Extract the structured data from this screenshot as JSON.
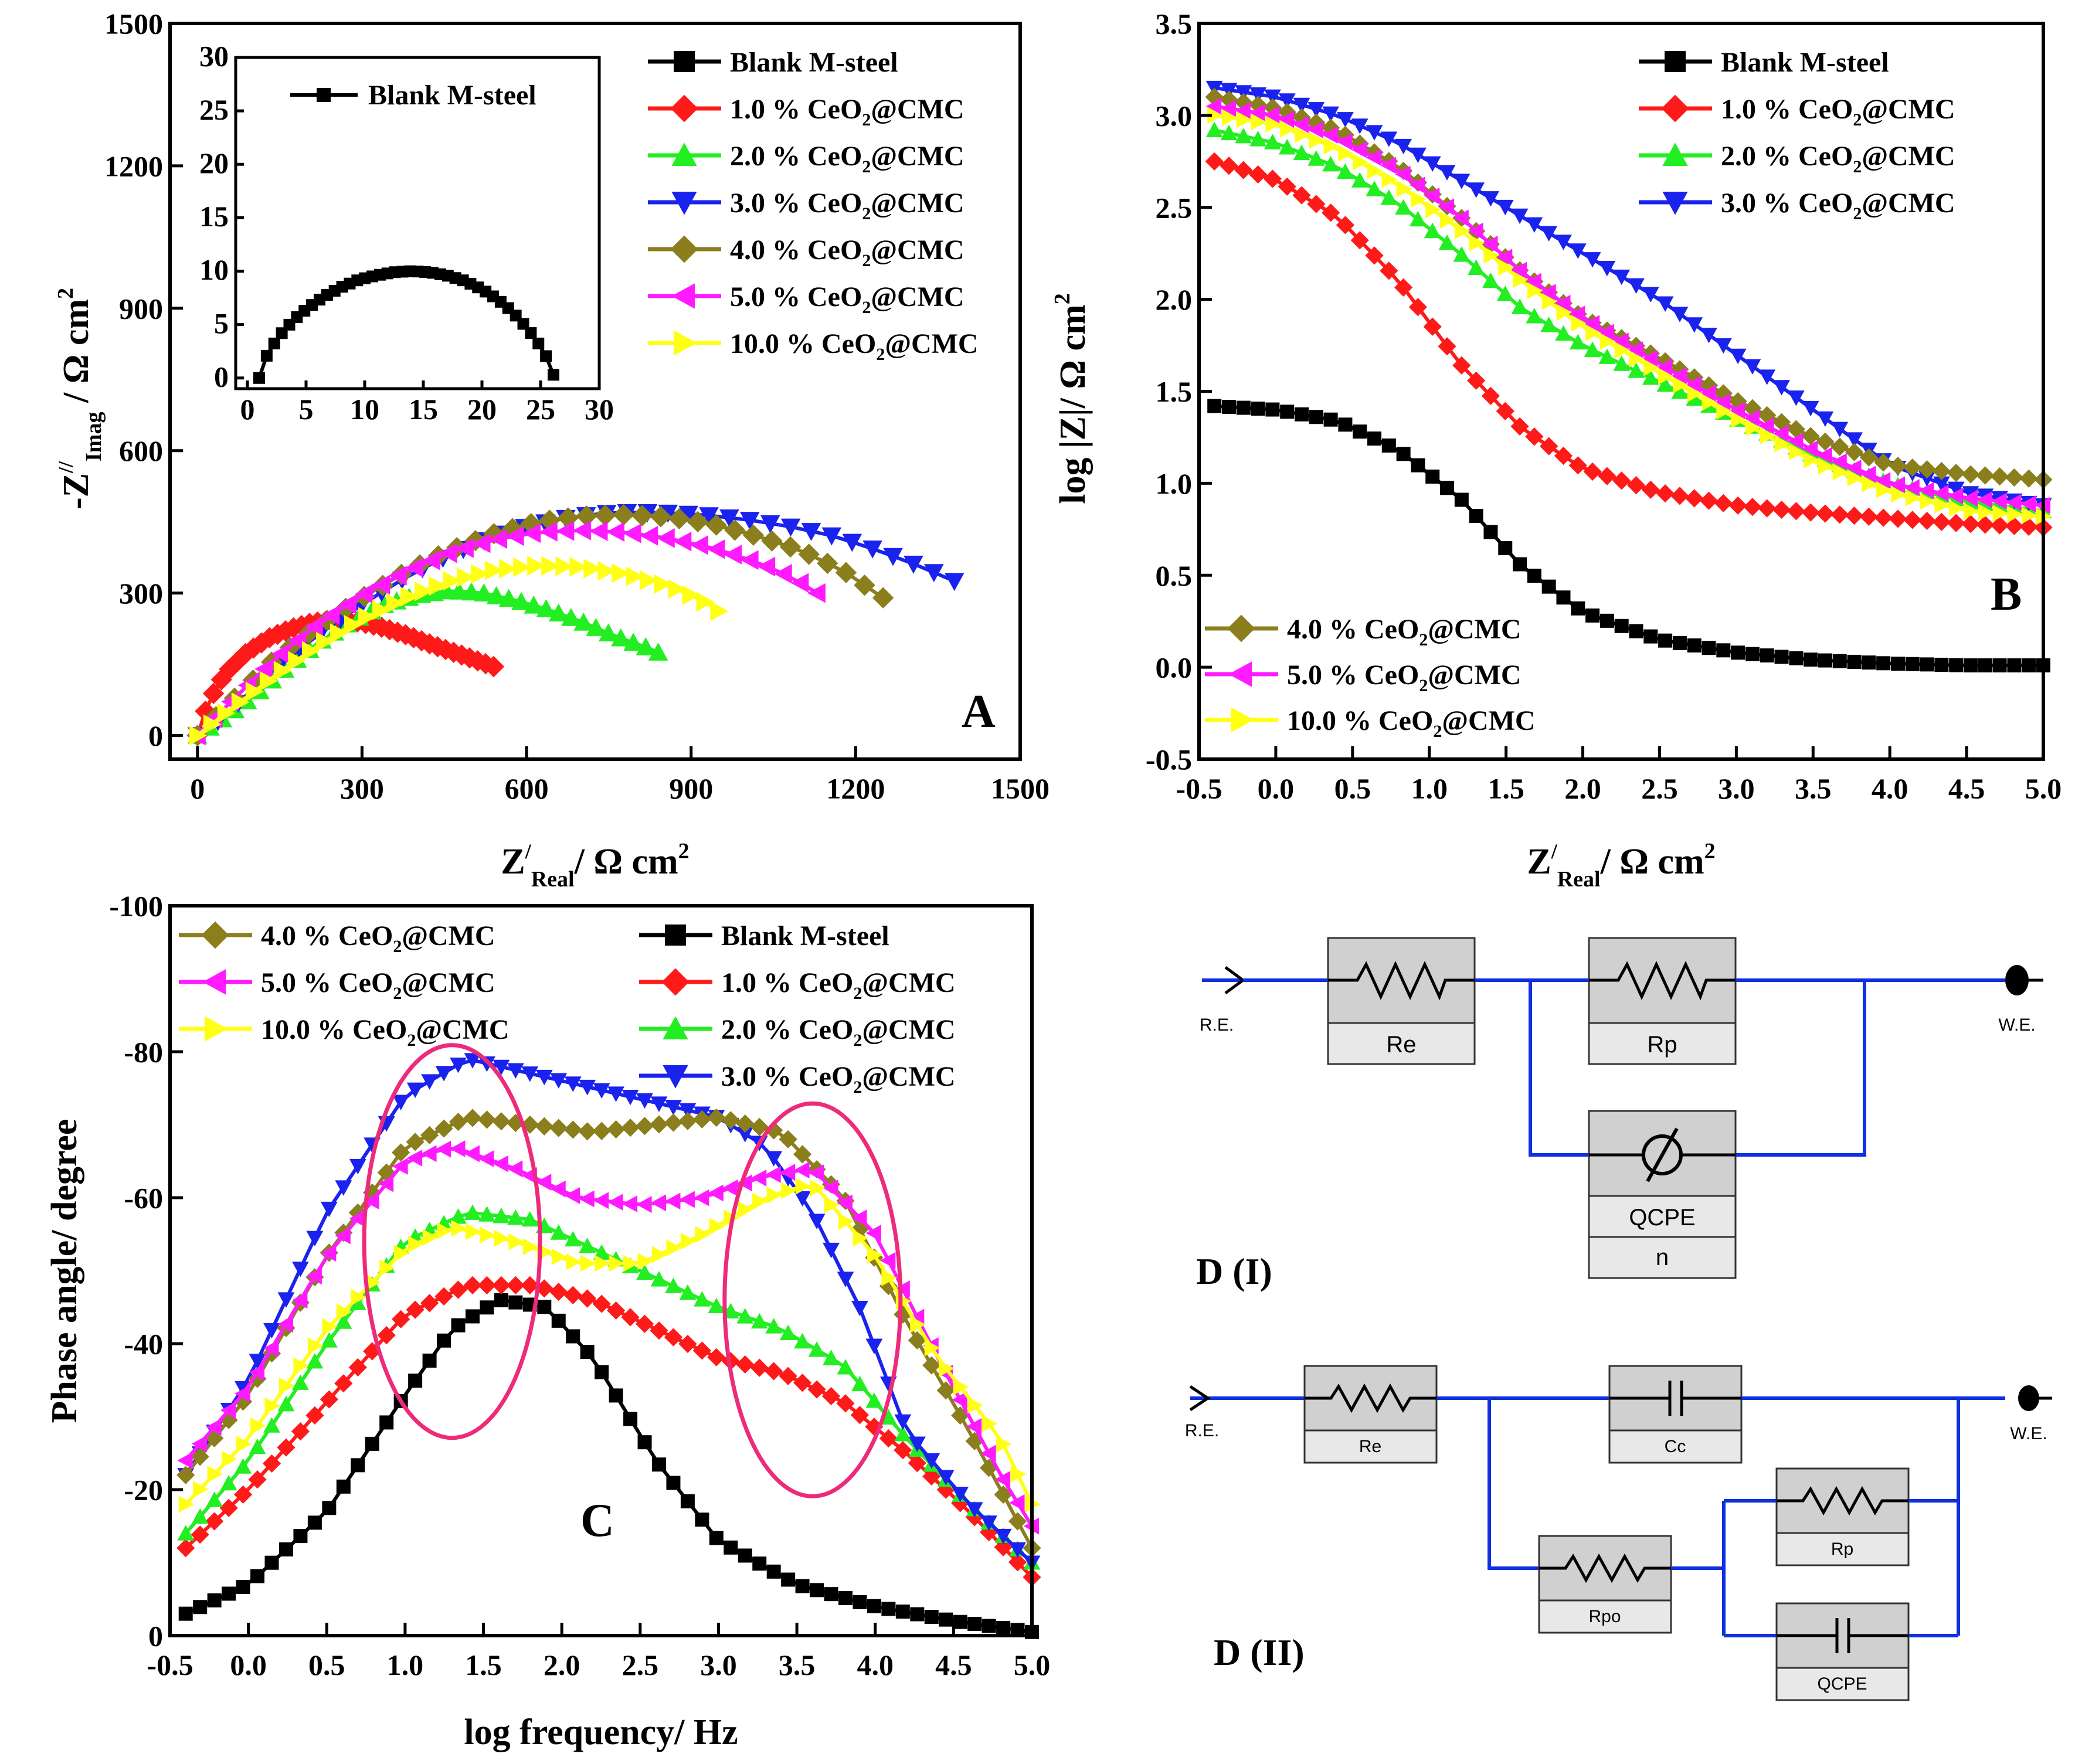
{
  "colors": {
    "blank": "#000000",
    "c1": "#ff1a1a",
    "c2": "#22ee22",
    "c3": "#1a22ee",
    "c4": "#8b7e1d",
    "c5": "#ff1aff",
    "c10": "#ffff14",
    "wire": "#1030e0",
    "ellipse": "#ee2a7b"
  },
  "series_names": {
    "blank": "Blank M-steel",
    "c1": "1.0 % CeO2@CMC",
    "c2": "2.0 % CeO2@CMC",
    "c3": "3.0 % CeO2@CMC",
    "c4": "4.0 % CeO2@CMC",
    "c5": "5.0 % CeO2@CMC",
    "c10": "10.0 % CeO2@CMC"
  },
  "legend_parts": {
    "c1": {
      "pre": "1.0 % CeO",
      "sub": "2",
      "post": "@CMC"
    },
    "c2": {
      "pre": "2.0 % CeO",
      "sub": "2",
      "post": "@CMC"
    },
    "c3": {
      "pre": "3.0 % CeO",
      "sub": "2",
      "post": "@CMC"
    },
    "c4": {
      "pre": "4.0 % CeO",
      "sub": "2",
      "post": "@CMC"
    },
    "c5": {
      "pre": "5.0 % CeO",
      "sub": "2",
      "post": "@CMC"
    },
    "c10": {
      "pre": "10.0 % CeO",
      "sub": "2",
      "post": "@CMC"
    }
  },
  "chart_data": [
    {
      "panel": "A",
      "type": "scatter",
      "title": "",
      "xlabel": "Z'Real / Ω cm2",
      "ylabel": "-Z''Imag / Ω cm2",
      "xlim": [
        -50,
        1500
      ],
      "ylim": [
        -50,
        1500
      ],
      "xticks": [
        0,
        300,
        600,
        900,
        1200,
        1500
      ],
      "yticks": [
        0,
        300,
        600,
        900,
        1200,
        1500
      ],
      "legend": "top-right",
      "series": [
        {
          "name": "1.0 % CeO2@CMC",
          "key": "c1",
          "x": [
            0,
            20,
            50,
            90,
            130,
            170,
            210,
            250,
            290,
            330,
            380,
            430,
            480,
            540
          ],
          "y": [
            0,
            70,
            130,
            175,
            205,
            225,
            238,
            242,
            240,
            230,
            212,
            190,
            170,
            145
          ]
        },
        {
          "name": "2.0 % CeO2@CMC",
          "key": "c2",
          "x": [
            0,
            40,
            100,
            160,
            220,
            280,
            340,
            400,
            460,
            520,
            580,
            640,
            700,
            760,
            820,
            840
          ],
          "y": [
            0,
            30,
            80,
            140,
            195,
            240,
            275,
            295,
            305,
            300,
            285,
            265,
            240,
            210,
            185,
            175
          ]
        },
        {
          "name": "3.0 % CeO2@CMC",
          "key": "c3",
          "x": [
            0,
            50,
            120,
            200,
            280,
            360,
            440,
            520,
            600,
            680,
            760,
            840,
            920,
            1000,
            1080,
            1160,
            1240,
            1320,
            1380
          ],
          "y": [
            0,
            40,
            120,
            195,
            260,
            320,
            370,
            410,
            440,
            460,
            470,
            470,
            465,
            455,
            440,
            420,
            390,
            355,
            325
          ]
        },
        {
          "name": "4.0 % CeO2@CMC",
          "key": "c4",
          "x": [
            0,
            60,
            140,
            220,
            300,
            380,
            460,
            540,
            620,
            700,
            780,
            860,
            940,
            1020,
            1100,
            1180,
            1250
          ],
          "y": [
            0,
            70,
            160,
            230,
            290,
            345,
            390,
            425,
            450,
            462,
            465,
            460,
            445,
            420,
            390,
            345,
            290
          ]
        },
        {
          "name": "5.0 % CeO2@CMC",
          "key": "c5",
          "x": [
            0,
            60,
            140,
            220,
            300,
            380,
            460,
            540,
            620,
            700,
            780,
            860,
            940,
            1020,
            1080,
            1130
          ],
          "y": [
            0,
            70,
            160,
            235,
            295,
            345,
            385,
            412,
            428,
            432,
            428,
            415,
            395,
            365,
            335,
            300
          ]
        },
        {
          "name": "10.0 % CeO2@CMC",
          "key": "c10",
          "x": [
            0,
            60,
            140,
            220,
            300,
            380,
            460,
            540,
            620,
            700,
            780,
            860,
            920,
            950
          ],
          "y": [
            0,
            55,
            125,
            190,
            245,
            290,
            325,
            348,
            358,
            355,
            340,
            315,
            285,
            262
          ]
        }
      ],
      "inset": {
        "xlim": [
          -1,
          30
        ],
        "ylim": [
          -1,
          30
        ],
        "xticks": [
          0,
          5,
          10,
          15,
          20,
          25,
          30
        ],
        "yticks": [
          0,
          5,
          10,
          15,
          20,
          25,
          30
        ],
        "series": [
          {
            "name": "Blank M-steel",
            "key": "blank",
            "x": [
              1.0,
              1.2,
              1.6,
              2.2,
              3.0,
              4.0,
              5.2,
              6.5,
              8.0,
              9.5,
              11.0,
              12.5,
              14.0,
              15.5,
              17.0,
              18.5,
              20.0,
              21.3,
              22.5,
              23.5,
              24.4,
              25.2,
              25.8,
              26.1
            ],
            "y": [
              0.0,
              1.0,
              2.0,
              3.1,
              4.3,
              5.5,
              6.6,
              7.6,
              8.5,
              9.2,
              9.6,
              9.9,
              10.0,
              9.9,
              9.6,
              9.1,
              8.3,
              7.4,
              6.3,
              5.1,
              3.9,
              2.6,
              1.3,
              0.3
            ]
          }
        ]
      }
    },
    {
      "panel": "B",
      "type": "scatter",
      "xlabel": "Z'Real / Ω cm2",
      "ylabel": "log |Z| / Ω cm2",
      "xlim": [
        -0.5,
        5.0
      ],
      "ylim": [
        -0.5,
        3.5
      ],
      "xticks": [
        -0.5,
        0.0,
        0.5,
        1.0,
        1.5,
        2.0,
        2.5,
        3.0,
        3.5,
        4.0,
        4.5,
        5.0
      ],
      "yticks": [
        -0.5,
        0.0,
        0.5,
        1.0,
        1.5,
        2.0,
        2.5,
        3.0,
        3.5
      ],
      "legend": "top-right",
      "series": [
        {
          "name": "Blank M-steel",
          "key": "blank",
          "x": [
            -0.4,
            0,
            0.4,
            0.8,
            1.2,
            1.6,
            2.0,
            2.5,
            3.0,
            3.5,
            4.0,
            4.5,
            5.0
          ],
          "y": [
            1.42,
            1.4,
            1.34,
            1.18,
            0.92,
            0.55,
            0.3,
            0.15,
            0.08,
            0.04,
            0.02,
            0.01,
            0.01
          ]
        },
        {
          "name": "1.0 % CeO2@CMC",
          "key": "c1",
          "x": [
            -0.4,
            0,
            0.4,
            0.8,
            1.2,
            1.6,
            2.0,
            2.5,
            3.0,
            3.5,
            4.0,
            4.5,
            5.0
          ],
          "y": [
            2.75,
            2.65,
            2.45,
            2.1,
            1.65,
            1.3,
            1.08,
            0.95,
            0.88,
            0.84,
            0.81,
            0.78,
            0.76
          ]
        },
        {
          "name": "2.0 % CeO2@CMC",
          "key": "c2",
          "x": [
            -0.4,
            0,
            0.4,
            0.8,
            1.2,
            1.6,
            2.0,
            2.5,
            3.0,
            3.5,
            4.0,
            4.5,
            5.0
          ],
          "y": [
            2.92,
            2.85,
            2.72,
            2.52,
            2.25,
            1.95,
            1.75,
            1.55,
            1.35,
            1.15,
            1.0,
            0.9,
            0.85
          ]
        },
        {
          "name": "3.0 % CeO2@CMC",
          "key": "c3",
          "x": [
            -0.4,
            0,
            0.4,
            0.8,
            1.2,
            1.6,
            2.0,
            2.5,
            3.0,
            3.5,
            4.0,
            4.5,
            5.0
          ],
          "y": [
            3.15,
            3.1,
            3.0,
            2.85,
            2.65,
            2.45,
            2.25,
            2.0,
            1.7,
            1.4,
            1.1,
            0.95,
            0.88
          ]
        },
        {
          "name": "4.0 % CeO2@CMC",
          "key": "c4",
          "x": [
            -0.4,
            0,
            0.4,
            0.8,
            1.2,
            1.6,
            2.0,
            2.5,
            3.0,
            3.5,
            4.0,
            4.5,
            5.0
          ],
          "y": [
            3.1,
            3.04,
            2.92,
            2.72,
            2.45,
            2.15,
            1.9,
            1.68,
            1.45,
            1.25,
            1.1,
            1.05,
            1.02
          ]
        },
        {
          "name": "5.0 % CeO2@CMC",
          "key": "c5",
          "x": [
            -0.4,
            0,
            0.4,
            0.8,
            1.2,
            1.6,
            2.0,
            2.5,
            3.0,
            3.5,
            4.0,
            4.5,
            5.0
          ],
          "y": [
            3.05,
            3.0,
            2.88,
            2.7,
            2.45,
            2.15,
            1.9,
            1.65,
            1.4,
            1.18,
            1.0,
            0.92,
            0.88
          ]
        },
        {
          "name": "10.0 % CeO2@CMC",
          "key": "c10",
          "x": [
            -0.4,
            0,
            0.4,
            0.8,
            1.2,
            1.6,
            2.0,
            2.5,
            3.0,
            3.5,
            4.0,
            4.5,
            5.0
          ],
          "y": [
            3.0,
            2.95,
            2.82,
            2.62,
            2.38,
            2.1,
            1.85,
            1.6,
            1.35,
            1.12,
            0.95,
            0.85,
            0.82
          ]
        }
      ]
    },
    {
      "panel": "C",
      "type": "scatter",
      "xlabel": "log frequency/ Hz",
      "ylabel": "Phase angle/ degree",
      "xlim": [
        -0.5,
        5.0
      ],
      "ylim": [
        0,
        -100
      ],
      "xticks": [
        -0.5,
        0.0,
        0.5,
        1.0,
        1.5,
        2.0,
        2.5,
        3.0,
        3.5,
        4.0,
        4.5,
        5.0
      ],
      "yticks": [
        0,
        -20,
        -40,
        -60,
        -80,
        -100
      ],
      "legend": "top",
      "series": [
        {
          "name": "Blank M-steel",
          "key": "blank",
          "x": [
            -0.4,
            0,
            0.5,
            1.0,
            1.3,
            1.6,
            1.9,
            2.2,
            2.6,
            3.0,
            3.5,
            4.0,
            4.5,
            5.0
          ],
          "y": [
            -3,
            -7,
            -17,
            -33,
            -42,
            -46,
            -45,
            -38,
            -24,
            -13,
            -7,
            -4,
            -2,
            -0.5
          ]
        },
        {
          "name": "1.0 % CeO2@CMC",
          "key": "c1",
          "x": [
            -0.4,
            0,
            0.5,
            1.0,
            1.4,
            1.8,
            2.2,
            2.6,
            3.0,
            3.4,
            3.8,
            4.2,
            4.6,
            5.0
          ],
          "y": [
            -12,
            -20,
            -32,
            -44,
            -48,
            -48,
            -46,
            -42,
            -38,
            -36,
            -32,
            -25,
            -17,
            -8
          ]
        },
        {
          "name": "2.0 % CeO2@CMC",
          "key": "c2",
          "x": [
            -0.4,
            0,
            0.5,
            1.0,
            1.4,
            1.8,
            2.2,
            2.6,
            3.0,
            3.4,
            3.8,
            4.2,
            4.6,
            5.0
          ],
          "y": [
            -14,
            -24,
            -40,
            -54,
            -58,
            -57,
            -53,
            -49,
            -45,
            -42,
            -37,
            -27,
            -18,
            -10
          ]
        },
        {
          "name": "3.0 % CeO2@CMC",
          "key": "c3",
          "x": [
            -0.4,
            0,
            0.5,
            1.0,
            1.4,
            1.8,
            2.2,
            2.6,
            3.0,
            3.3,
            3.6,
            3.9,
            4.2,
            4.6,
            5.0
          ],
          "y": [
            -22,
            -35,
            -58,
            -74,
            -79,
            -77,
            -75,
            -73,
            -71,
            -67,
            -58,
            -45,
            -28,
            -18,
            -10
          ]
        },
        {
          "name": "4.0 % CeO2@CMC",
          "key": "c4",
          "x": [
            -0.4,
            0,
            0.5,
            1.0,
            1.4,
            1.8,
            2.2,
            2.6,
            3.0,
            3.4,
            3.8,
            4.2,
            4.6,
            5.0
          ],
          "y": [
            -22,
            -33,
            -52,
            -67,
            -71,
            -70,
            -69,
            -70,
            -71,
            -69,
            -60,
            -43,
            -28,
            -12
          ]
        },
        {
          "name": "5.0 % CeO2@CMC",
          "key": "c5",
          "x": [
            -0.4,
            0,
            0.5,
            1.0,
            1.3,
            1.7,
            2.1,
            2.5,
            2.9,
            3.3,
            3.6,
            4.0,
            4.4,
            4.8,
            5.0
          ],
          "y": [
            -24,
            -34,
            -52,
            -65,
            -67,
            -64,
            -60,
            -59,
            -60,
            -63,
            -64,
            -55,
            -38,
            -22,
            -15
          ]
        },
        {
          "name": "10.0 % CeO2@CMC",
          "key": "c10",
          "x": [
            -0.4,
            0,
            0.5,
            1.0,
            1.3,
            1.7,
            2.1,
            2.5,
            2.9,
            3.3,
            3.6,
            4.0,
            4.4,
            4.8,
            5.0
          ],
          "y": [
            -18,
            -27,
            -42,
            -53,
            -56,
            -54,
            -51,
            -51,
            -55,
            -60,
            -62,
            -52,
            -38,
            -27,
            -18
          ]
        }
      ],
      "ellipses": [
        {
          "cx": 1.3,
          "cy": -54
        },
        {
          "cx": 3.6,
          "cy": -46
        }
      ]
    }
  ],
  "panels": {
    "a": "A",
    "b": "B",
    "c": "C"
  },
  "panelA": {
    "ylabel_pre": "-Z",
    "ylabel_sup": "//",
    "ylabel_sub": "Imag",
    "ylabel_post": " / Ω cm",
    "ylabel_sup2": "2",
    "xlabel_pre": "Z",
    "xlabel_sup": "/",
    "xlabel_sub": "Real",
    "xlabel_post": "/ Ω cm",
    "xlabel_sup2": "2",
    "inset_legend": "Blank M-steel"
  },
  "panelB": {
    "ylabel": "log |Z|/ Ω cm",
    "ylabel_sup": "2",
    "xlabel_pre": "Z",
    "xlabel_sup": "/",
    "xlabel_sub": "Real",
    "xlabel_post": "/ Ω cm",
    "xlabel_sup2": "2"
  },
  "panelC": {
    "ylabel": "Phase angle/ degree",
    "xlabel": "log frequency/ Hz"
  },
  "circuit1": {
    "label": "D (I)",
    "re": "R.E.",
    "we": "W.E.",
    "r1": "Re",
    "r2": "Rp",
    "cpe": "QCPE",
    "n": "n"
  },
  "circuit2": {
    "label": "D (II)",
    "re": "R.E.",
    "we": "W.E.",
    "r1": "Re",
    "cc": "Cc",
    "rp": "Rp",
    "rpo": "Rpo",
    "cpe": "QCPE"
  }
}
